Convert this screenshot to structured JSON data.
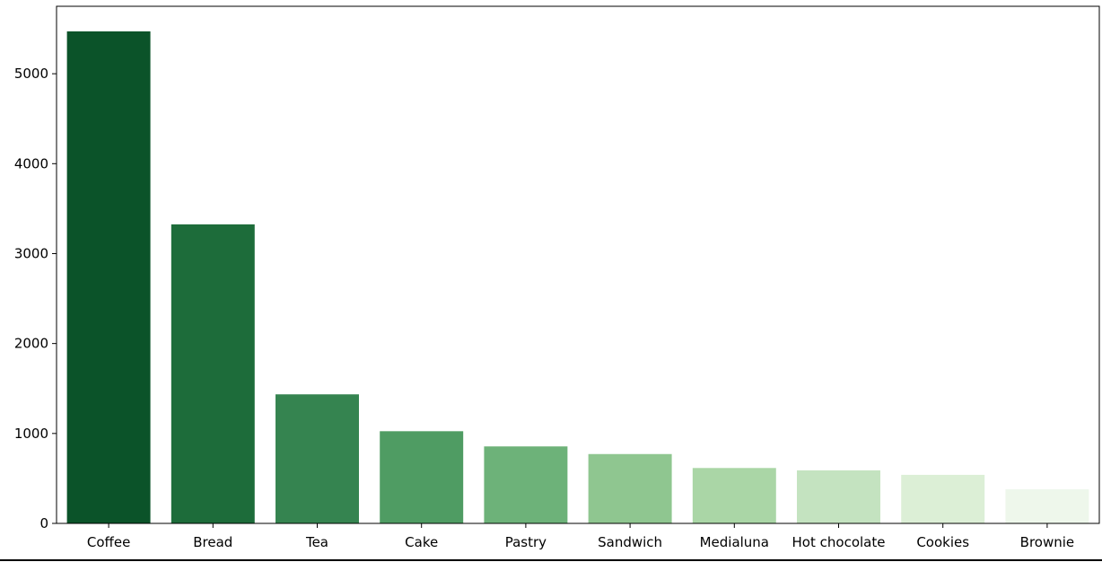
{
  "chart_data": {
    "type": "bar",
    "title": "",
    "xlabel": "",
    "ylabel": "",
    "categories": [
      "Coffee",
      "Bread",
      "Tea",
      "Cake",
      "Pastry",
      "Sandwich",
      "Medialuna",
      "Hot chocolate",
      "Cookies",
      "Brownie"
    ],
    "values": [
      5471,
      3325,
      1435,
      1025,
      856,
      771,
      616,
      590,
      540,
      379
    ],
    "colors": [
      "#0b5329",
      "#1d6c3a",
      "#358450",
      "#4f9c63",
      "#6db279",
      "#8fc690",
      "#aad6a6",
      "#c4e3c0",
      "#dcefd6",
      "#eef7eb"
    ],
    "ylim": [
      0,
      5750
    ],
    "yticks": [
      0,
      1000,
      2000,
      3000,
      4000,
      5000
    ],
    "grid": false,
    "legend": "none"
  }
}
